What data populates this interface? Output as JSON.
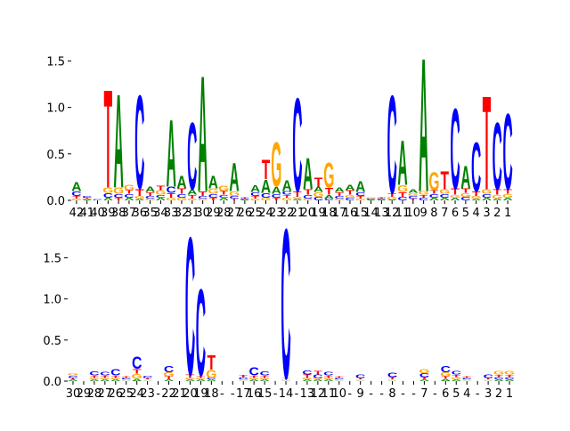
{
  "chart_data": [
    {
      "type": "logo",
      "categories": [
        "42",
        "41",
        "40",
        "39",
        "38",
        "37",
        "36",
        "35",
        "34",
        "33",
        "32",
        "31",
        "30",
        "29",
        "28",
        "27",
        "26",
        "25",
        "24",
        "23",
        "22",
        "21",
        "20",
        "19",
        "18",
        "17",
        "16",
        "15",
        "14",
        "13",
        "12",
        "11",
        "10",
        "9",
        "8",
        "7",
        "6",
        "5",
        "4",
        "3",
        "2",
        "1"
      ],
      "ylim": [
        0,
        1.6
      ],
      "yticks": [
        {
          "value": 0,
          "label": "0.0"
        },
        {
          "value": 0.5,
          "label": "0.5"
        },
        {
          "value": 1,
          "label": "1.0"
        },
        {
          "value": 1.5,
          "label": "1.5"
        }
      ],
      "series": [
        {
          "name": "A",
          "color": "#008000",
          "values": [
            0.1,
            0.01,
            0,
            0.03,
            1.05,
            0.03,
            0.02,
            0.06,
            0.03,
            0.75,
            0.14,
            0.06,
            1.3,
            0.14,
            0.03,
            0.32,
            0.01,
            0.08,
            0.15,
            0.08,
            0.12,
            0.02,
            0.35,
            0.06,
            0.04,
            0.05,
            0.06,
            0.12,
            0.01,
            0.01,
            0.01,
            0.5,
            0.04,
            1.5,
            0.03,
            0.03,
            0.03,
            0.25,
            0.02,
            0.03,
            0.02,
            0.03
          ]
        },
        {
          "name": "C",
          "color": "#0000ff",
          "values": [
            0.05,
            0.02,
            0.01,
            0.05,
            0.04,
            0.04,
            1.05,
            0.03,
            0.03,
            0.07,
            0.04,
            0.75,
            0.03,
            0.04,
            0.03,
            0.03,
            0.01,
            0.04,
            0.05,
            0.04,
            0.04,
            1.05,
            0.04,
            0.04,
            0.02,
            0.03,
            0.03,
            0.04,
            0.01,
            0.01,
            1.1,
            0.04,
            0.03,
            0.03,
            0.04,
            0.04,
            0.9,
            0.04,
            0.55,
            0.04,
            0.75,
            0.85
          ]
        },
        {
          "name": "G",
          "color": "#ffa500",
          "values": [
            0.02,
            0.01,
            0,
            0.06,
            0.07,
            0.06,
            0.03,
            0.02,
            0.05,
            0.03,
            0.03,
            0.02,
            0.02,
            0.06,
            0.06,
            0.05,
            0,
            0.02,
            0.03,
            0.5,
            0.03,
            0.02,
            0.02,
            0.05,
            0.28,
            0.02,
            0.03,
            0.02,
            0.01,
            0,
            0.03,
            0.08,
            0.03,
            0.04,
            0.2,
            0.05,
            0.03,
            0.04,
            0.03,
            0.05,
            0.04,
            0.04
          ]
        },
        {
          "name": "T",
          "color": "#ff0000",
          "values": [
            0.03,
            0.01,
            0,
            1.1,
            0.03,
            0.04,
            0.08,
            0.04,
            0.05,
            0.05,
            0.06,
            0.04,
            0.05,
            0.03,
            0.04,
            0.02,
            0.01,
            0.03,
            0.22,
            0.03,
            0.03,
            0.06,
            0.06,
            0.1,
            0.08,
            0.04,
            0.05,
            0.03,
            0,
            0.01,
            0.04,
            0.05,
            0.02,
            0.03,
            0.04,
            0.2,
            0.07,
            0.05,
            0.05,
            1.05,
            0.06,
            0.05
          ]
        }
      ]
    },
    {
      "type": "logo",
      "categories": [
        "30",
        "29",
        "28",
        "27",
        "26",
        "25",
        "24",
        "23",
        "-",
        "22",
        "21",
        "20",
        "19",
        "18",
        "-",
        "-",
        "17",
        "16",
        "15",
        "-",
        "14",
        "-",
        "13",
        "12",
        "11",
        "10",
        "-",
        "9",
        "-",
        "-",
        "8",
        "-",
        "-",
        "7",
        "-",
        "6",
        "5",
        "4",
        "-",
        "3",
        "2",
        "1"
      ],
      "ylim": [
        0,
        1.95
      ],
      "yticks": [
        {
          "value": 0,
          "label": "0.0"
        },
        {
          "value": 0.5,
          "label": "0.5"
        },
        {
          "value": 1,
          "label": "1.0"
        },
        {
          "value": 1.5,
          "label": "1.5"
        }
      ],
      "series": [
        {
          "name": "A",
          "color": "#008000",
          "values": [
            0.02,
            0,
            0.02,
            0.02,
            0.02,
            0.01,
            0.03,
            0.01,
            0,
            0.02,
            0,
            0.02,
            0.02,
            0.02,
            0,
            0,
            0.01,
            0.02,
            0.02,
            0,
            0.01,
            0,
            0.02,
            0.02,
            0.02,
            0.01,
            0,
            0.01,
            0,
            0,
            0.01,
            0,
            0,
            0.02,
            0,
            0.03,
            0.02,
            0.01,
            0,
            0.01,
            0.02,
            0.02
          ]
        },
        {
          "name": "C",
          "color": "#0000ff",
          "values": [
            0.03,
            0,
            0.05,
            0.04,
            0.08,
            0.02,
            0.15,
            0.03,
            0,
            0.08,
            0,
            1.75,
            1.1,
            0.02,
            0,
            0,
            0.03,
            0.1,
            0.05,
            0,
            1.9,
            0,
            0.05,
            0.04,
            0.04,
            0.02,
            0,
            0.04,
            0,
            0,
            0.06,
            0,
            0,
            0.05,
            0,
            0.08,
            0.04,
            0.02,
            0,
            0.04,
            0.03,
            0.03
          ]
        },
        {
          "name": "G",
          "color": "#ffa500",
          "values": [
            0.03,
            0,
            0.02,
            0.02,
            0.02,
            0.01,
            0.06,
            0.01,
            0,
            0.05,
            0,
            0.02,
            0.02,
            0.1,
            0,
            0,
            0.01,
            0.02,
            0.02,
            0,
            0.01,
            0,
            0.02,
            0.02,
            0.02,
            0.01,
            0,
            0.01,
            0,
            0,
            0.01,
            0,
            0,
            0.05,
            0,
            0.05,
            0.03,
            0.01,
            0,
            0.01,
            0.04,
            0.04
          ]
        },
        {
          "name": "T",
          "color": "#ff0000",
          "values": [
            0.02,
            0,
            0.03,
            0.03,
            0.03,
            0.02,
            0.06,
            0.02,
            0,
            0.04,
            0,
            0.04,
            0.03,
            0.18,
            0,
            0,
            0.03,
            0.03,
            0.03,
            0,
            0.02,
            0,
            0.04,
            0.04,
            0.03,
            0.02,
            0,
            0.02,
            0,
            0,
            0.03,
            0,
            0,
            0.03,
            0,
            0.03,
            0.03,
            0.02,
            0,
            0.02,
            0.03,
            0.03
          ]
        }
      ]
    }
  ]
}
